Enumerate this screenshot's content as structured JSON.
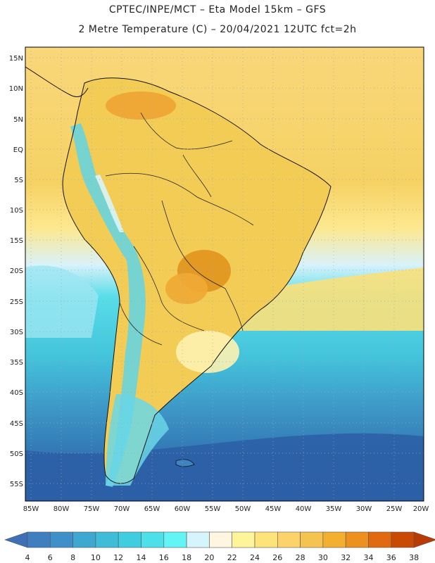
{
  "header": {
    "title_line1": "CPTEC/INPE/MCT –  Eta Model 15km – GFS",
    "title_line2": "2 Metre Temperature (C) – 20/04/2021 12UTC fct=2h"
  },
  "map": {
    "lat_labels": [
      "15N",
      "10N",
      "5N",
      "EQ",
      "5S",
      "10S",
      "15S",
      "20S",
      "25S",
      "30S",
      "35S",
      "40S",
      "45S",
      "50S",
      "55S"
    ],
    "lon_labels": [
      "85W",
      "80W",
      "75W",
      "70W",
      "65W",
      "60W",
      "55W",
      "50W",
      "45W",
      "40W",
      "35W",
      "30W",
      "25W",
      "20W"
    ]
  },
  "colorbar": {
    "labels": [
      "4",
      "6",
      "8",
      "10",
      "12",
      "14",
      "16",
      "18",
      "20",
      "22",
      "24",
      "26",
      "28",
      "30",
      "32",
      "34",
      "36",
      "38"
    ],
    "colors": [
      "#3f7fbf",
      "#3f8fc8",
      "#3fa8d0",
      "#3fbcd8",
      "#40cde0",
      "#4ee0e8",
      "#63f4f5",
      "#d6f4fb",
      "#fef6e0",
      "#fef49a",
      "#fde37a",
      "#fcd36a",
      "#f5c450",
      "#f3b030",
      "#ec9020",
      "#e16a10",
      "#c94a05"
    ],
    "left_end_color": "#3f6fb5",
    "right_end_color": "#b83a05"
  }
}
